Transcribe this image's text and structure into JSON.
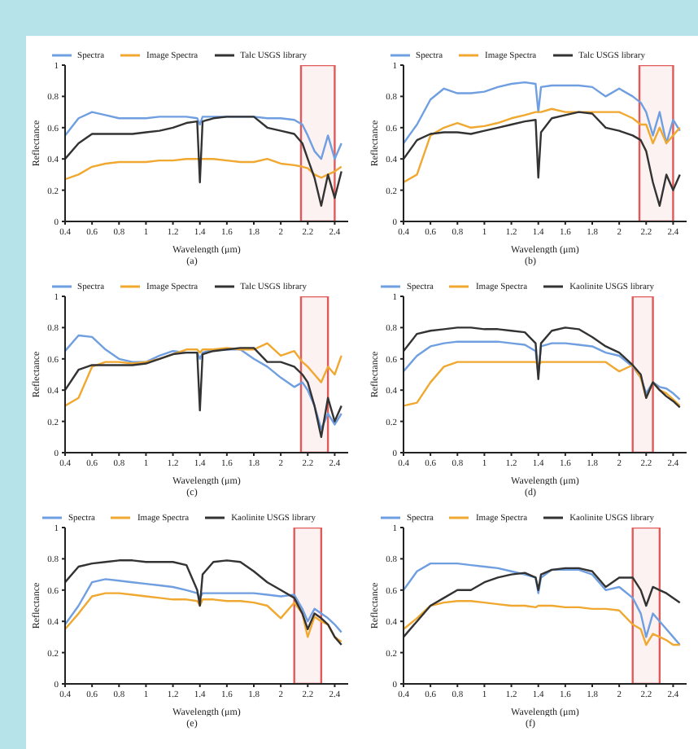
{
  "chart_data": [
    {
      "type": "line",
      "xlabel": "Wavelength (μm)",
      "ylabel": "Reflectance",
      "annotations": [
        "(a)"
      ],
      "legend": "top",
      "xlim": [
        0.4,
        2.5
      ],
      "xticks": [
        0.4,
        0.6,
        0.8,
        1,
        1.2,
        1.4,
        1.6,
        1.8,
        2,
        2.2,
        2.4
      ],
      "ylim": [
        0,
        1
      ],
      "yticks": [
        0,
        0.2,
        0.4,
        0.6,
        0.8,
        1
      ],
      "x": [
        0.4,
        0.5,
        0.6,
        0.7,
        0.8,
        0.9,
        1.0,
        1.1,
        1.2,
        1.3,
        1.38,
        1.4,
        1.42,
        1.5,
        1.6,
        1.7,
        1.8,
        1.9,
        2.0,
        2.1,
        2.16,
        2.2,
        2.25,
        2.3,
        2.35,
        2.4,
        2.45
      ],
      "bands": [
        {
          "axis": "x",
          "from": 2.15,
          "to": 2.4,
          "color": "#e05a5a"
        }
      ],
      "series": [
        {
          "name": "Spectra",
          "color": "#6f9fe0",
          "values": [
            0.55,
            0.66,
            0.7,
            0.68,
            0.66,
            0.66,
            0.66,
            0.67,
            0.67,
            0.67,
            0.66,
            0.62,
            0.67,
            0.67,
            0.67,
            0.67,
            0.67,
            0.66,
            0.66,
            0.65,
            0.62,
            0.55,
            0.45,
            0.4,
            0.55,
            0.4,
            0.5
          ]
        },
        {
          "name": "Image Spectra",
          "color": "#f0a830",
          "values": [
            0.27,
            0.3,
            0.35,
            0.37,
            0.38,
            0.38,
            0.38,
            0.39,
            0.39,
            0.4,
            0.4,
            0.4,
            0.4,
            0.4,
            0.39,
            0.38,
            0.38,
            0.4,
            0.37,
            0.36,
            0.35,
            0.34,
            0.3,
            0.28,
            0.3,
            0.32,
            0.35
          ]
        },
        {
          "name": "Talc USGS library",
          "color": "#333333",
          "values": [
            0.4,
            0.5,
            0.56,
            0.56,
            0.56,
            0.56,
            0.57,
            0.58,
            0.6,
            0.63,
            0.64,
            0.25,
            0.64,
            0.66,
            0.67,
            0.67,
            0.67,
            0.6,
            0.58,
            0.56,
            0.5,
            0.4,
            0.28,
            0.1,
            0.3,
            0.15,
            0.32
          ]
        }
      ]
    },
    {
      "type": "line",
      "xlabel": "Wavelength (μm)",
      "ylabel": "Reflectance",
      "annotations": [
        "(b)"
      ],
      "legend": "top",
      "xlim": [
        0.4,
        2.5
      ],
      "xticks": [
        0.4,
        0.6,
        0.8,
        1,
        1.2,
        1.4,
        1.6,
        1.8,
        2,
        2.2,
        2.4
      ],
      "ylim": [
        0,
        1
      ],
      "yticks": [
        0,
        0.2,
        0.4,
        0.6,
        0.8,
        1
      ],
      "x": [
        0.4,
        0.5,
        0.6,
        0.7,
        0.8,
        0.9,
        1.0,
        1.1,
        1.2,
        1.3,
        1.38,
        1.4,
        1.42,
        1.5,
        1.6,
        1.7,
        1.8,
        1.9,
        2.0,
        2.1,
        2.16,
        2.2,
        2.25,
        2.3,
        2.35,
        2.4,
        2.45
      ],
      "bands": [
        {
          "axis": "x",
          "from": 2.15,
          "to": 2.4,
          "color": "#e05a5a"
        }
      ],
      "series": [
        {
          "name": "Spectra",
          "color": "#6f9fe0",
          "values": [
            0.5,
            0.62,
            0.78,
            0.85,
            0.82,
            0.82,
            0.83,
            0.86,
            0.88,
            0.89,
            0.88,
            0.7,
            0.86,
            0.87,
            0.87,
            0.87,
            0.86,
            0.8,
            0.85,
            0.8,
            0.76,
            0.7,
            0.55,
            0.7,
            0.5,
            0.65,
            0.58
          ]
        },
        {
          "name": "Image Spectra",
          "color": "#f0a830",
          "values": [
            0.25,
            0.3,
            0.55,
            0.6,
            0.63,
            0.6,
            0.61,
            0.63,
            0.66,
            0.68,
            0.7,
            0.7,
            0.7,
            0.72,
            0.7,
            0.7,
            0.7,
            0.7,
            0.7,
            0.66,
            0.62,
            0.62,
            0.5,
            0.6,
            0.5,
            0.55,
            0.6
          ]
        },
        {
          "name": "Talc USGS library",
          "color": "#333333",
          "values": [
            0.4,
            0.52,
            0.56,
            0.57,
            0.57,
            0.56,
            0.58,
            0.6,
            0.62,
            0.64,
            0.65,
            0.28,
            0.57,
            0.66,
            0.68,
            0.7,
            0.69,
            0.6,
            0.58,
            0.55,
            0.52,
            0.45,
            0.25,
            0.1,
            0.3,
            0.2,
            0.3
          ]
        }
      ]
    },
    {
      "type": "line",
      "xlabel": "Wavelength (μm)",
      "ylabel": "Reflectance",
      "annotations": [
        "(c)"
      ],
      "legend": "top",
      "xlim": [
        0.4,
        2.5
      ],
      "xticks": [
        0.4,
        0.6,
        0.8,
        1,
        1.2,
        1.4,
        1.6,
        1.8,
        2,
        2.2,
        2.4
      ],
      "ylim": [
        0,
        1
      ],
      "yticks": [
        0,
        0.2,
        0.4,
        0.6,
        0.8,
        1
      ],
      "x": [
        0.4,
        0.5,
        0.6,
        0.7,
        0.8,
        0.9,
        1.0,
        1.1,
        1.2,
        1.3,
        1.38,
        1.4,
        1.42,
        1.5,
        1.6,
        1.7,
        1.8,
        1.9,
        2.0,
        2.1,
        2.16,
        2.2,
        2.25,
        2.3,
        2.35,
        2.4,
        2.45
      ],
      "bands": [
        {
          "axis": "x",
          "from": 2.15,
          "to": 2.35,
          "color": "#e05a5a"
        }
      ],
      "series": [
        {
          "name": "Spectra",
          "color": "#6f9fe0",
          "values": [
            0.65,
            0.75,
            0.74,
            0.66,
            0.6,
            0.58,
            0.58,
            0.62,
            0.65,
            0.64,
            0.64,
            0.6,
            0.64,
            0.66,
            0.66,
            0.66,
            0.6,
            0.55,
            0.48,
            0.42,
            0.45,
            0.4,
            0.3,
            0.15,
            0.25,
            0.18,
            0.25
          ]
        },
        {
          "name": "Image Spectra",
          "color": "#f0a830",
          "values": [
            0.3,
            0.35,
            0.55,
            0.58,
            0.58,
            0.57,
            0.58,
            0.6,
            0.63,
            0.66,
            0.66,
            0.64,
            0.66,
            0.66,
            0.67,
            0.66,
            0.66,
            0.7,
            0.62,
            0.65,
            0.58,
            0.55,
            0.5,
            0.45,
            0.55,
            0.5,
            0.62
          ]
        },
        {
          "name": "Talc USGS library",
          "color": "#333333",
          "values": [
            0.4,
            0.53,
            0.56,
            0.56,
            0.56,
            0.56,
            0.57,
            0.6,
            0.63,
            0.64,
            0.64,
            0.27,
            0.63,
            0.65,
            0.66,
            0.67,
            0.67,
            0.58,
            0.58,
            0.55,
            0.5,
            0.45,
            0.3,
            0.1,
            0.35,
            0.2,
            0.3
          ]
        }
      ]
    },
    {
      "type": "line",
      "xlabel": "Wavelength (μm)",
      "ylabel": "Reflectance",
      "annotations": [
        "(d)"
      ],
      "legend": "top",
      "xlim": [
        0.4,
        2.5
      ],
      "xticks": [
        0.4,
        0.6,
        0.8,
        1,
        1.2,
        1.4,
        1.6,
        1.8,
        2,
        2.2,
        2.4
      ],
      "ylim": [
        0,
        1
      ],
      "yticks": [
        0,
        0.2,
        0.4,
        0.6,
        0.8,
        1
      ],
      "x": [
        0.4,
        0.5,
        0.6,
        0.7,
        0.8,
        0.9,
        1.0,
        1.1,
        1.2,
        1.3,
        1.38,
        1.4,
        1.42,
        1.5,
        1.6,
        1.7,
        1.8,
        1.9,
        2.0,
        2.1,
        2.16,
        2.2,
        2.25,
        2.3,
        2.35,
        2.4,
        2.45
      ],
      "bands": [
        {
          "axis": "x",
          "from": 2.1,
          "to": 2.25,
          "color": "#e05a5a"
        }
      ],
      "series": [
        {
          "name": "Spectra",
          "color": "#6f9fe0",
          "values": [
            0.52,
            0.62,
            0.68,
            0.7,
            0.71,
            0.71,
            0.71,
            0.71,
            0.7,
            0.69,
            0.65,
            0.5,
            0.68,
            0.7,
            0.7,
            0.69,
            0.68,
            0.64,
            0.62,
            0.55,
            0.48,
            0.38,
            0.45,
            0.42,
            0.41,
            0.38,
            0.34
          ]
        },
        {
          "name": "Image Spectra",
          "color": "#f0a830",
          "values": [
            0.3,
            0.32,
            0.45,
            0.55,
            0.58,
            0.58,
            0.58,
            0.58,
            0.58,
            0.58,
            0.58,
            0.56,
            0.58,
            0.58,
            0.58,
            0.58,
            0.58,
            0.58,
            0.52,
            0.56,
            0.48,
            0.35,
            0.45,
            0.4,
            0.38,
            0.34,
            0.3
          ]
        },
        {
          "name": "Kaolinite USGS library",
          "color": "#333333",
          "values": [
            0.65,
            0.76,
            0.78,
            0.79,
            0.8,
            0.8,
            0.79,
            0.79,
            0.78,
            0.77,
            0.7,
            0.47,
            0.7,
            0.78,
            0.8,
            0.79,
            0.74,
            0.68,
            0.64,
            0.56,
            0.5,
            0.35,
            0.45,
            0.4,
            0.36,
            0.33,
            0.29
          ]
        }
      ]
    },
    {
      "type": "line",
      "xlabel": "Wavelength (μm)",
      "ylabel": "Reflectance",
      "annotations": [
        "(e)"
      ],
      "legend": "top",
      "xlim": [
        0.4,
        2.5
      ],
      "xticks": [
        0.4,
        0.6,
        0.8,
        1,
        1.2,
        1.4,
        1.6,
        1.8,
        2,
        2.2,
        2.4
      ],
      "ylim": [
        0,
        1
      ],
      "yticks": [
        0,
        0.2,
        0.4,
        0.6,
        0.8,
        1
      ],
      "x": [
        0.4,
        0.5,
        0.6,
        0.7,
        0.8,
        0.9,
        1.0,
        1.1,
        1.2,
        1.3,
        1.38,
        1.4,
        1.42,
        1.5,
        1.6,
        1.7,
        1.8,
        1.9,
        2.0,
        2.1,
        2.16,
        2.2,
        2.25,
        2.3,
        2.35,
        2.4,
        2.45
      ],
      "bands": [
        {
          "axis": "x",
          "from": 2.1,
          "to": 2.3,
          "color": "#e05a5a"
        }
      ],
      "series": [
        {
          "name": "Spectra",
          "color": "#6f9fe0",
          "values": [
            0.38,
            0.5,
            0.65,
            0.67,
            0.66,
            0.65,
            0.64,
            0.63,
            0.62,
            0.6,
            0.58,
            0.55,
            0.58,
            0.58,
            0.58,
            0.58,
            0.58,
            0.57,
            0.56,
            0.57,
            0.48,
            0.4,
            0.48,
            0.45,
            0.42,
            0.38,
            0.33
          ]
        },
        {
          "name": "Image Spectra",
          "color": "#f0a830",
          "values": [
            0.35,
            0.45,
            0.56,
            0.58,
            0.58,
            0.57,
            0.56,
            0.55,
            0.54,
            0.54,
            0.53,
            0.5,
            0.54,
            0.54,
            0.53,
            0.53,
            0.52,
            0.5,
            0.42,
            0.52,
            0.45,
            0.3,
            0.43,
            0.4,
            0.38,
            0.3,
            0.27
          ]
        },
        {
          "name": "Kaolinite USGS library",
          "color": "#333333",
          "values": [
            0.65,
            0.75,
            0.77,
            0.78,
            0.79,
            0.79,
            0.78,
            0.78,
            0.78,
            0.76,
            0.6,
            0.5,
            0.7,
            0.78,
            0.79,
            0.78,
            0.72,
            0.65,
            0.6,
            0.55,
            0.45,
            0.35,
            0.45,
            0.42,
            0.38,
            0.3,
            0.25
          ]
        }
      ]
    },
    {
      "type": "line",
      "xlabel": "Wavelength (μm)",
      "ylabel": "Reflectance",
      "annotations": [
        "(f)"
      ],
      "legend": "top",
      "xlim": [
        0.4,
        2.5
      ],
      "xticks": [
        0.4,
        0.6,
        0.8,
        1,
        1.2,
        1.4,
        1.6,
        1.8,
        2,
        2.2,
        2.4
      ],
      "ylim": [
        0,
        1
      ],
      "yticks": [
        0,
        0.2,
        0.4,
        0.6,
        0.8,
        1
      ],
      "x": [
        0.4,
        0.5,
        0.6,
        0.7,
        0.8,
        0.9,
        1.0,
        1.1,
        1.2,
        1.3,
        1.38,
        1.4,
        1.42,
        1.5,
        1.6,
        1.7,
        1.8,
        1.9,
        2.0,
        2.1,
        2.16,
        2.2,
        2.25,
        2.3,
        2.35,
        2.4,
        2.45
      ],
      "bands": [
        {
          "axis": "x",
          "from": 2.1,
          "to": 2.3,
          "color": "#e05a5a"
        }
      ],
      "series": [
        {
          "name": "Spectra",
          "color": "#6f9fe0",
          "values": [
            0.6,
            0.72,
            0.77,
            0.77,
            0.77,
            0.76,
            0.75,
            0.74,
            0.72,
            0.7,
            0.68,
            0.58,
            0.68,
            0.73,
            0.73,
            0.73,
            0.7,
            0.6,
            0.62,
            0.55,
            0.45,
            0.3,
            0.45,
            0.4,
            0.35,
            0.3,
            0.25
          ]
        },
        {
          "name": "Image Spectra",
          "color": "#f0a830",
          "values": [
            0.35,
            0.42,
            0.5,
            0.52,
            0.53,
            0.53,
            0.52,
            0.51,
            0.5,
            0.5,
            0.49,
            0.5,
            0.5,
            0.5,
            0.49,
            0.49,
            0.48,
            0.48,
            0.47,
            0.38,
            0.35,
            0.25,
            0.32,
            0.3,
            0.28,
            0.25,
            0.25
          ]
        },
        {
          "name": "Kaolinite USGS library",
          "color": "#333333",
          "values": [
            0.3,
            0.4,
            0.5,
            0.55,
            0.6,
            0.6,
            0.65,
            0.68,
            0.7,
            0.71,
            0.68,
            0.6,
            0.7,
            0.73,
            0.74,
            0.74,
            0.72,
            0.62,
            0.68,
            0.68,
            0.6,
            0.5,
            0.62,
            0.6,
            0.58,
            0.55,
            0.52
          ]
        }
      ]
    }
  ]
}
